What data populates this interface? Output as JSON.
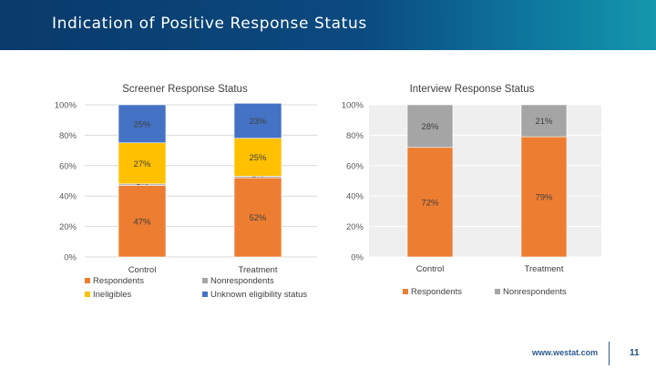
{
  "header": {
    "title": "Indication of Positive Response Status"
  },
  "footer": {
    "url": "www.westat.com",
    "page_number": "11"
  },
  "chart_data": [
    {
      "type": "bar",
      "stacked": true,
      "title": "Screener Response Status",
      "categories": [
        "Control",
        "Treatment"
      ],
      "ylim": [
        0,
        100
      ],
      "y_ticks": [
        "0%",
        "20%",
        "40%",
        "60%",
        "80%",
        "100%"
      ],
      "grid": true,
      "legend_position": "bottom",
      "series": [
        {
          "name": "Respondents",
          "color": "#ed7d31",
          "values": [
            47,
            52
          ],
          "labels": [
            "47%",
            "52%"
          ]
        },
        {
          "name": "Nonrespondents",
          "color": "#a5a5a5",
          "values": [
            1,
            1
          ],
          "labels": [
            "1%",
            "1%"
          ]
        },
        {
          "name": "Ineligibles",
          "color": "#ffc000",
          "values": [
            27,
            25
          ],
          "labels": [
            "27%",
            "25%"
          ]
        },
        {
          "name": "Unknown eligibility status",
          "color": "#4472c4",
          "values": [
            25,
            23
          ],
          "labels": [
            "25%",
            "23%"
          ]
        }
      ]
    },
    {
      "type": "bar",
      "stacked": true,
      "title": "Interview Response Status",
      "categories": [
        "Control",
        "Treatment"
      ],
      "ylim": [
        0,
        100
      ],
      "y_ticks": [
        "0%",
        "20%",
        "40%",
        "60%",
        "80%",
        "100%"
      ],
      "grid": true,
      "legend_position": "bottom",
      "series": [
        {
          "name": "Respondents",
          "color": "#ed7d31",
          "values": [
            72,
            79
          ],
          "labels": [
            "72%",
            "79%"
          ]
        },
        {
          "name": "Nonrespondents",
          "color": "#a5a5a5",
          "values": [
            28,
            21
          ],
          "labels": [
            "28%",
            "21%"
          ]
        }
      ]
    }
  ]
}
